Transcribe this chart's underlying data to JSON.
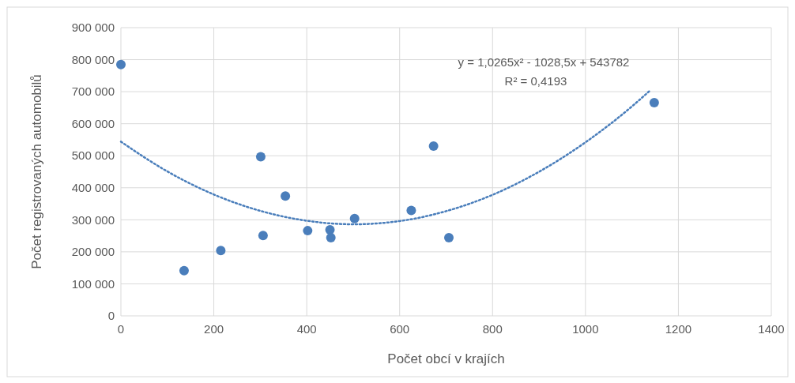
{
  "chart_data": {
    "type": "scatter",
    "xlabel": "Počet obcí v krajích",
    "ylabel": "Počet registrovaných automobilů",
    "xlim": [
      0,
      1400
    ],
    "xticks": [
      0,
      200,
      400,
      600,
      800,
      1000,
      1200,
      1400
    ],
    "ylim": [
      0,
      900000
    ],
    "yticks": [
      0,
      {
        "value": 100000,
        "label": "100 000"
      },
      {
        "value": 200000,
        "label": "200 000"
      },
      {
        "value": 300000,
        "label": "300 000"
      },
      {
        "value": 400000,
        "label": "400 000"
      },
      {
        "value": 500000,
        "label": "500 000"
      },
      {
        "value": 600000,
        "label": "600 000"
      },
      {
        "value": 700000,
        "label": "700 000"
      },
      {
        "value": 800000,
        "label": "800 000"
      },
      {
        "value": 900000,
        "label": "900 000"
      }
    ],
    "grid": true,
    "series": [
      {
        "color": "#4a7ebb",
        "marker": "circle",
        "x": [
          0,
          136,
          215,
          301,
          306,
          354,
          402,
          450,
          452,
          503,
          625,
          673,
          706,
          1148
        ],
        "values": [
          785000,
          141000,
          204000,
          497000,
          251000,
          374000,
          266000,
          269000,
          244000,
          304000,
          329000,
          530000,
          244000,
          666000
        ]
      },
      {
        "type": "line",
        "color": "#4a7ebb",
        "marker": "none",
        "line_style": "dotted",
        "x": [
          0,
          100,
          200,
          300,
          400,
          500,
          600,
          700,
          800,
          900,
          1000,
          1100,
          1140
        ],
        "values": [
          544000,
          451000,
          379000,
          328000,
          297000,
          286000,
          296000,
          327000,
          378000,
          450000,
          542000,
          654000,
          705000
        ]
      }
    ],
    "annotations": [
      "y = 1,0265x² - 1028,5x + 543782",
      "R² = 0,4193"
    ]
  }
}
